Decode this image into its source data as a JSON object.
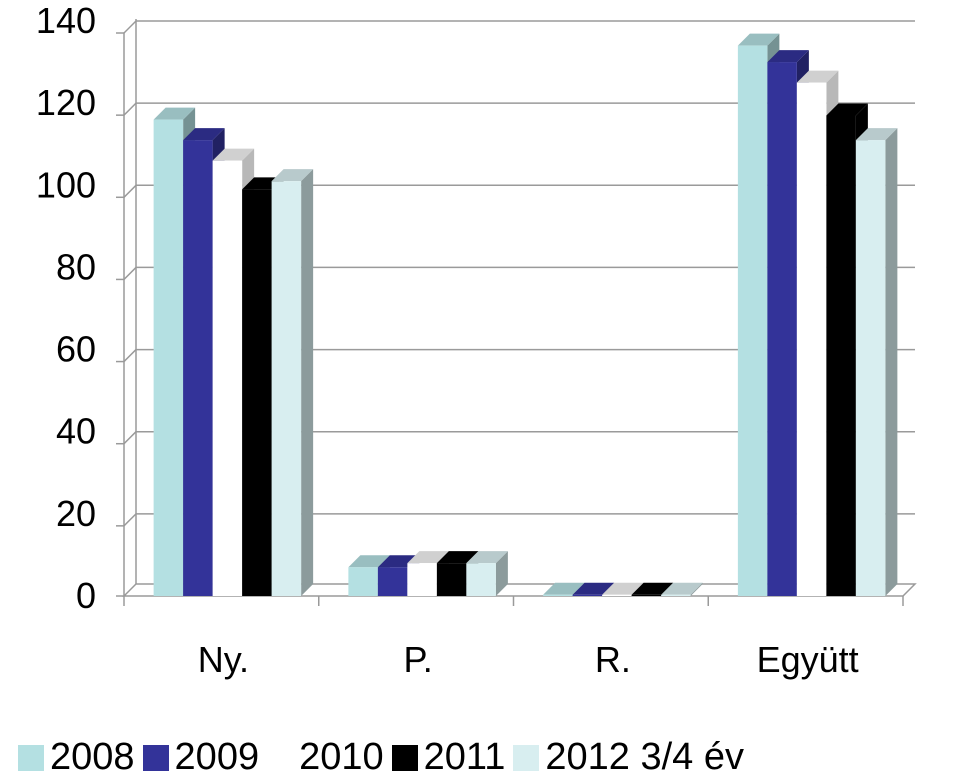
{
  "chart_data": {
    "type": "bar",
    "title": "",
    "xlabel": "",
    "ylabel": "",
    "ylim": [
      0,
      140
    ],
    "yticks": [
      "0",
      "20",
      "40",
      "60",
      "80",
      "100",
      "120",
      "140"
    ],
    "grid": true,
    "legend_position": "bottom",
    "categories": [
      "Ny.",
      "P.",
      "R.",
      "Együtt"
    ],
    "series": [
      {
        "name": "2008",
        "color": "#b4e0e2",
        "values": [
          116,
          7,
          0.3,
          134
        ]
      },
      {
        "name": "2009",
        "color": "#333399",
        "values": [
          111,
          7,
          0.3,
          130
        ]
      },
      {
        "name": "2010",
        "color": "#ffffff",
        "values": [
          106,
          8,
          0.3,
          125
        ]
      },
      {
        "name": "2011",
        "color": "#000000",
        "values": [
          99,
          8,
          0.3,
          117
        ]
      },
      {
        "name": "2012 3/4 év",
        "color": "#d8eef0",
        "values": [
          101,
          8,
          0.3,
          111
        ]
      }
    ]
  }
}
